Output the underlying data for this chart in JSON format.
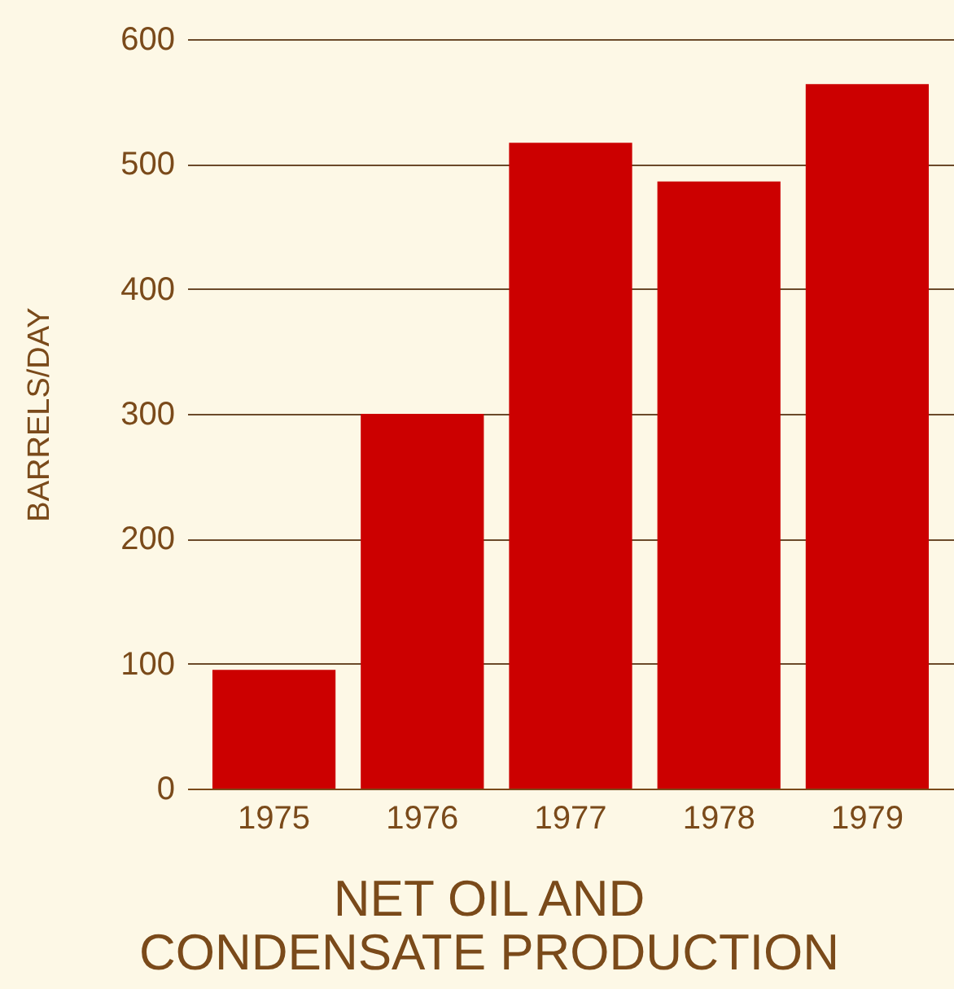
{
  "chart_data": {
    "type": "bar",
    "title": "NET OIL AND\nCONDENSATE  PRODUCTION",
    "ylabel": "BARRELS/DAY",
    "categories": [
      "1975",
      "1976",
      "1977",
      "1978",
      "1979"
    ],
    "values": [
      95,
      300,
      517,
      486,
      564
    ],
    "color": "#cc0000",
    "ylim": [
      0,
      600
    ],
    "yticks": [
      0,
      100,
      200,
      300,
      400,
      500,
      600
    ],
    "grid": "y"
  }
}
